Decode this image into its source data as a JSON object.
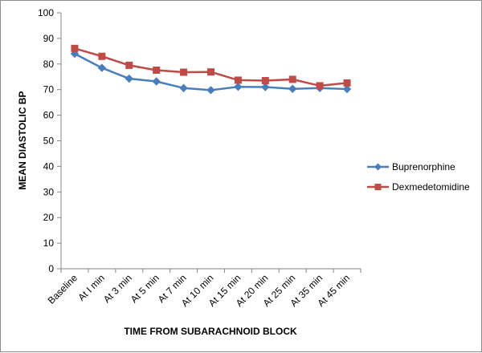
{
  "chart_data": {
    "type": "line",
    "title": "",
    "xlabel": "TIME FROM SUBARACHNOID BLOCK",
    "ylabel": "MEAN DIASTOLIC BP",
    "ylim": [
      0,
      100
    ],
    "yticks": [
      0,
      10,
      20,
      30,
      40,
      50,
      60,
      70,
      80,
      90,
      100
    ],
    "grid": false,
    "legend_position": "right",
    "categories": [
      "Baseline",
      "At I min",
      "At 3 min",
      "At 5 min",
      "At 7 min",
      "At 10 min",
      "At 15 min",
      "At 20 min",
      "At 25 min",
      "At 35 min",
      "At 45 min"
    ],
    "series": [
      {
        "name": "Buprenorphine",
        "color": "#4A7EBB",
        "marker": "diamond",
        "values": [
          84,
          78.5,
          74.3,
          73.2,
          70.6,
          69.8,
          71.1,
          71.0,
          70.3,
          70.6,
          70.2
        ]
      },
      {
        "name": "Dexmedetomidine",
        "color": "#BE4B48",
        "marker": "square",
        "values": [
          86.1,
          83,
          79.5,
          77.6,
          76.8,
          76.9,
          73.7,
          73.5,
          74.0,
          71.5,
          72.6
        ]
      }
    ]
  }
}
